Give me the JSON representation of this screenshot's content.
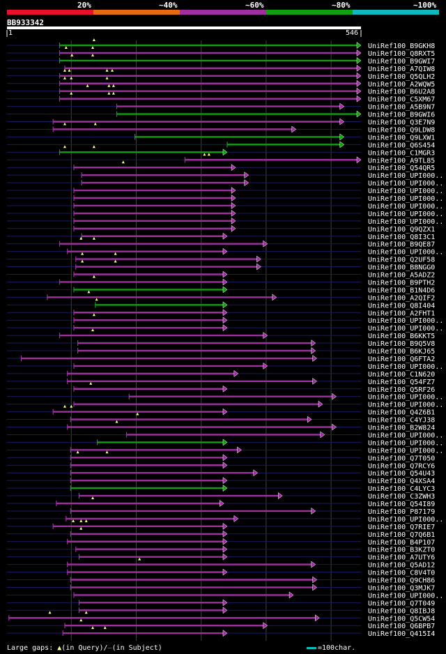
{
  "header": {
    "legend": [
      {
        "label": "20%",
        "color": "#e8102a"
      },
      {
        "label": "~40%",
        "color": "#e86a10"
      },
      {
        "label": "~60%",
        "color": "#a030a0"
      },
      {
        "label": "~80%",
        "color": "#10a010"
      },
      {
        "label": "~100%",
        "color": "#10b8c0"
      }
    ],
    "query_id": "BB933342",
    "start_label": "1",
    "end_label": "546"
  },
  "footer": {
    "gaps_prefix": "Large gaps:",
    "gaps_query": "(in Query)/",
    "gaps_subject": "(in Subject)",
    "scale_label": "=100char."
  },
  "chart_data": {
    "type": "alignment",
    "query_length": 546,
    "x_range": [
      1,
      546
    ],
    "grid": true,
    "hits": [
      {
        "name": "UniRef100_B9GKH8",
        "start": 82,
        "end": 546,
        "color": "#10a010",
        "gaps": [
          135
        ]
      },
      {
        "name": "UniRef100_Q8RXT5",
        "start": 82,
        "end": 546,
        "color": "#a030a0",
        "gaps": [
          92,
          133
        ]
      },
      {
        "name": "UniRef100_B9GWI7",
        "start": 82,
        "end": 546,
        "color": "#10a010",
        "gaps": [
          101,
          133
        ]
      },
      {
        "name": "UniRef100_A7QIW8",
        "start": 90,
        "end": 546,
        "color": "#a030a0",
        "gaps": []
      },
      {
        "name": "UniRef100_Q5QLH2",
        "start": 82,
        "end": 546,
        "color": "#a030a0",
        "gaps": [
          90,
          97,
          155,
          163
        ]
      },
      {
        "name": "UniRef100_A2WQW5",
        "start": 82,
        "end": 546,
        "color": "#a030a0",
        "gaps": [
          90,
          100,
          155
        ]
      },
      {
        "name": "UniRef100_B6U2A8",
        "start": 82,
        "end": 546,
        "color": "#a030a0",
        "gaps": [
          125,
          158,
          165
        ]
      },
      {
        "name": "UniRef100_C5XM67",
        "start": 82,
        "end": 546,
        "color": "#a030a0",
        "gaps": [
          100,
          158,
          165
        ]
      },
      {
        "name": "UniRef100_A5B9N7",
        "start": 170,
        "end": 520,
        "color": "#a030a0",
        "gaps": []
      },
      {
        "name": "UniRef100_B9GWI6",
        "start": 170,
        "end": 546,
        "color": "#10a010",
        "gaps": []
      },
      {
        "name": "UniRef100_Q3E7N9",
        "start": 72,
        "end": 520,
        "color": "#a030a0",
        "gaps": []
      },
      {
        "name": "UniRef100_Q9LDW8",
        "start": 72,
        "end": 446,
        "color": "#a030a0",
        "gaps": [
          90,
          137
        ]
      },
      {
        "name": "UniRef100_Q9LXW1",
        "start": 198,
        "end": 520,
        "color": "#10a010",
        "gaps": []
      },
      {
        "name": "UniRef100_Q6S454",
        "start": 340,
        "end": 520,
        "color": "#10a010",
        "gaps": []
      },
      {
        "name": "UniRef100_C1MGR3",
        "start": 82,
        "end": 340,
        "color": "#10a010",
        "gaps": [
          90,
          135
        ]
      },
      {
        "name": "UniRef100_A9TL85",
        "start": 275,
        "end": 546,
        "color": "#a030a0",
        "gaps": [
          305,
          312
        ]
      },
      {
        "name": "UniRef100_Q54QR5",
        "start": 104,
        "end": 353,
        "color": "#a030a0",
        "gaps": [
          180
        ]
      },
      {
        "name": "UniRef100_UPI000..1",
        "start": 116,
        "end": 373,
        "color": "#a030a0",
        "gaps": []
      },
      {
        "name": "UniRef100_UPI000..2",
        "start": 116,
        "end": 373,
        "color": "#a030a0",
        "gaps": []
      },
      {
        "name": "UniRef100_UPI000..3",
        "start": 104,
        "end": 353,
        "color": "#a030a0",
        "gaps": []
      },
      {
        "name": "UniRef100_UPI000..4",
        "start": 104,
        "end": 353,
        "color": "#a030a0",
        "gaps": []
      },
      {
        "name": "UniRef100_UPI000..5",
        "start": 104,
        "end": 353,
        "color": "#a030a0",
        "gaps": []
      },
      {
        "name": "UniRef100_UPI000..6",
        "start": 104,
        "end": 353,
        "color": "#a030a0",
        "gaps": []
      },
      {
        "name": "UniRef100_UPI000..7",
        "start": 104,
        "end": 353,
        "color": "#a030a0",
        "gaps": []
      },
      {
        "name": "UniRef100_Q9QZX1",
        "start": 104,
        "end": 353,
        "color": "#a030a0",
        "gaps": []
      },
      {
        "name": "UniRef100_Q8I3C1",
        "start": 116,
        "end": 340,
        "color": "#a030a0",
        "gaps": []
      },
      {
        "name": "UniRef100_B9QE87",
        "start": 82,
        "end": 402,
        "color": "#a030a0",
        "gaps": [
          115,
          135
        ]
      },
      {
        "name": "UniRef100_UPI000..8",
        "start": 94,
        "end": 340,
        "color": "#a030a0",
        "gaps": []
      },
      {
        "name": "UniRef100_Q2UF58",
        "start": 107,
        "end": 392,
        "color": "#a030a0",
        "gaps": [
          117,
          168
        ]
      },
      {
        "name": "UniRef100_B8NGG0",
        "start": 107,
        "end": 392,
        "color": "#a030a0",
        "gaps": [
          117,
          168
        ]
      },
      {
        "name": "UniRef100_A5ADZ2",
        "start": 104,
        "end": 340,
        "color": "#a030a0",
        "gaps": []
      },
      {
        "name": "UniRef100_B9PTH2",
        "start": 82,
        "end": 340,
        "color": "#a030a0",
        "gaps": [
          135
        ]
      },
      {
        "name": "UniRef100_B1N4D6",
        "start": 104,
        "end": 340,
        "color": "#10a010",
        "gaps": []
      },
      {
        "name": "UniRef100_A2QIF2",
        "start": 63,
        "end": 416,
        "color": "#a030a0",
        "gaps": [
          127
        ]
      },
      {
        "name": "UniRef100_Q8I404",
        "start": 137,
        "end": 340,
        "color": "#10a010",
        "gaps": [
          139
        ]
      },
      {
        "name": "UniRef100_A2FHT1",
        "start": 104,
        "end": 340,
        "color": "#a030a0",
        "gaps": []
      },
      {
        "name": "UniRef100_UPI000..9",
        "start": 104,
        "end": 340,
        "color": "#a030a0",
        "gaps": [
          135
        ]
      },
      {
        "name": "UniRef100_UPI000..10",
        "start": 104,
        "end": 340,
        "color": "#a030a0",
        "gaps": []
      },
      {
        "name": "UniRef100_B6KKT5",
        "start": 82,
        "end": 402,
        "color": "#a030a0",
        "gaps": [
          133
        ]
      },
      {
        "name": "UniRef100_B9Q5V8",
        "start": 110,
        "end": 476,
        "color": "#a030a0",
        "gaps": []
      },
      {
        "name": "UniRef100_B6KJ65",
        "start": 110,
        "end": 476,
        "color": "#a030a0",
        "gaps": []
      },
      {
        "name": "UniRef100_Q6FTA2",
        "start": 23,
        "end": 478,
        "color": "#a030a0",
        "gaps": []
      },
      {
        "name": "UniRef100_UPI000..11",
        "start": 104,
        "end": 402,
        "color": "#a030a0",
        "gaps": []
      },
      {
        "name": "UniRef100_C1N620",
        "start": 94,
        "end": 357,
        "color": "#a030a0",
        "gaps": []
      },
      {
        "name": "UniRef100_Q54FZ7",
        "start": 94,
        "end": 478,
        "color": "#a030a0",
        "gaps": []
      },
      {
        "name": "UniRef100_Q5RF26",
        "start": 104,
        "end": 340,
        "color": "#a030a0",
        "gaps": [
          130
        ]
      },
      {
        "name": "UniRef100_UPI000..12",
        "start": 189,
        "end": 508,
        "color": "#a030a0",
        "gaps": []
      },
      {
        "name": "UniRef100_UPI000..13",
        "start": 104,
        "end": 487,
        "color": "#a030a0",
        "gaps": []
      },
      {
        "name": "UniRef100_Q4Z6B1",
        "start": 72,
        "end": 340,
        "color": "#a030a0",
        "gaps": [
          90,
          100
        ]
      },
      {
        "name": "UniRef100_C4YJ38",
        "start": 99,
        "end": 470,
        "color": "#a030a0",
        "gaps": [
          202
        ]
      },
      {
        "name": "UniRef100_B2W824",
        "start": 94,
        "end": 508,
        "color": "#a030a0",
        "gaps": [
          170
        ]
      },
      {
        "name": "UniRef100_UPI000..14",
        "start": 185,
        "end": 490,
        "color": "#a030a0",
        "gaps": []
      },
      {
        "name": "UniRef100_UPI000..15",
        "start": 140,
        "end": 340,
        "color": "#10a010",
        "gaps": []
      },
      {
        "name": "UniRef100_UPI000..16",
        "start": 99,
        "end": 362,
        "color": "#a030a0",
        "gaps": []
      },
      {
        "name": "UniRef100_Q7T050",
        "start": 99,
        "end": 340,
        "color": "#a030a0",
        "gaps": [
          110,
          155
        ]
      },
      {
        "name": "UniRef100_Q7RCY6",
        "start": 99,
        "end": 340,
        "color": "#a030a0",
        "gaps": []
      },
      {
        "name": "UniRef100_Q54U43",
        "start": 99,
        "end": 387,
        "color": "#a030a0",
        "gaps": []
      },
      {
        "name": "UniRef100_Q4XSA4",
        "start": 99,
        "end": 340,
        "color": "#a030a0",
        "gaps": []
      },
      {
        "name": "UniRef100_C4LYC3",
        "start": 99,
        "end": 340,
        "color": "#10a010",
        "gaps": []
      },
      {
        "name": "UniRef100_C3ZWH3",
        "start": 112,
        "end": 425,
        "color": "#a030a0",
        "gaps": []
      },
      {
        "name": "UniRef100_Q54I89",
        "start": 77,
        "end": 335,
        "color": "#a030a0",
        "gaps": [
          133
        ]
      },
      {
        "name": "UniRef100_P87179",
        "start": 99,
        "end": 476,
        "color": "#a030a0",
        "gaps": []
      },
      {
        "name": "UniRef100_UPI000..17",
        "start": 92,
        "end": 357,
        "color": "#a030a0",
        "gaps": []
      },
      {
        "name": "UniRef100_Q7RIE7",
        "start": 72,
        "end": 340,
        "color": "#a030a0",
        "gaps": [
          103,
          115,
          123
        ]
      },
      {
        "name": "UniRef100_Q7Q6B1",
        "start": 99,
        "end": 340,
        "color": "#a030a0",
        "gaps": [
          115
        ]
      },
      {
        "name": "UniRef100_B4P107",
        "start": 94,
        "end": 340,
        "color": "#a030a0",
        "gaps": []
      },
      {
        "name": "UniRef100_B3KZT0",
        "start": 107,
        "end": 340,
        "color": "#a030a0",
        "gaps": []
      },
      {
        "name": "UniRef100_A7UTY6",
        "start": 112,
        "end": 340,
        "color": "#a030a0",
        "gaps": []
      },
      {
        "name": "UniRef100_Q5AD12",
        "start": 94,
        "end": 476,
        "color": "#a030a0",
        "gaps": [
          205
        ]
      },
      {
        "name": "UniRef100_C8V4T0",
        "start": 94,
        "end": 340,
        "color": "#a030a0",
        "gaps": []
      },
      {
        "name": "UniRef100_Q9CH86",
        "start": 99,
        "end": 478,
        "color": "#a030a0",
        "gaps": []
      },
      {
        "name": "UniRef100_Q3MJK7",
        "start": 99,
        "end": 478,
        "color": "#a030a0",
        "gaps": []
      },
      {
        "name": "UniRef100_UPI000..18",
        "start": 104,
        "end": 442,
        "color": "#a030a0",
        "gaps": []
      },
      {
        "name": "UniRef100_Q7T049",
        "start": 112,
        "end": 340,
        "color": "#a030a0",
        "gaps": []
      },
      {
        "name": "UniRef100_Q8IBJ8",
        "start": 112,
        "end": 340,
        "color": "#a030a0",
        "gaps": []
      },
      {
        "name": "UniRef100_Q5CW54",
        "start": 4,
        "end": 482,
        "color": "#a030a0",
        "gaps": [
          67,
          123
        ]
      },
      {
        "name": "UniRef100_Q6BPB7",
        "start": 90,
        "end": 402,
        "color": "#a030a0",
        "gaps": [
          115
        ]
      },
      {
        "name": "UniRef100_Q415I4",
        "start": 87,
        "end": 340,
        "color": "#a030a0",
        "gaps": [
          133,
          152
        ]
      }
    ]
  }
}
